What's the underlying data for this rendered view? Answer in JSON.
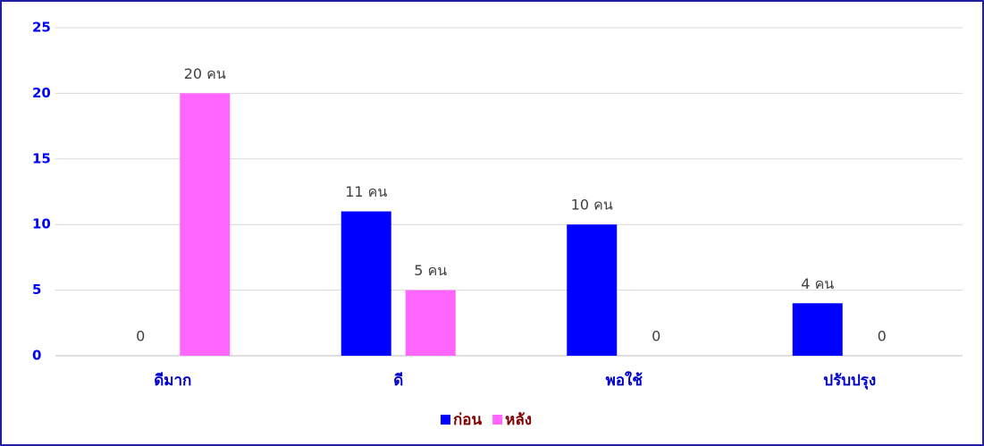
{
  "chart_data": {
    "type": "bar",
    "categories": [
      "ดีมาก",
      "ดี",
      "พอใช้",
      "ปรับปรุง"
    ],
    "series": [
      {
        "name": "ก่อน",
        "color": "#0000ff",
        "values": [
          0,
          11,
          10,
          4
        ],
        "value_labels": [
          "0",
          "11 คน",
          "10 คน",
          "4 คน"
        ]
      },
      {
        "name": "หลัง",
        "color": "#ff66ff",
        "values": [
          20,
          5,
          0,
          0
        ],
        "value_labels": [
          "20 คน",
          "5 คน",
          "0",
          "0"
        ]
      }
    ],
    "ylim": [
      0,
      25
    ],
    "yticks": [
      0,
      5,
      10,
      15,
      20,
      25
    ],
    "grid": true,
    "legend": "bottom"
  }
}
